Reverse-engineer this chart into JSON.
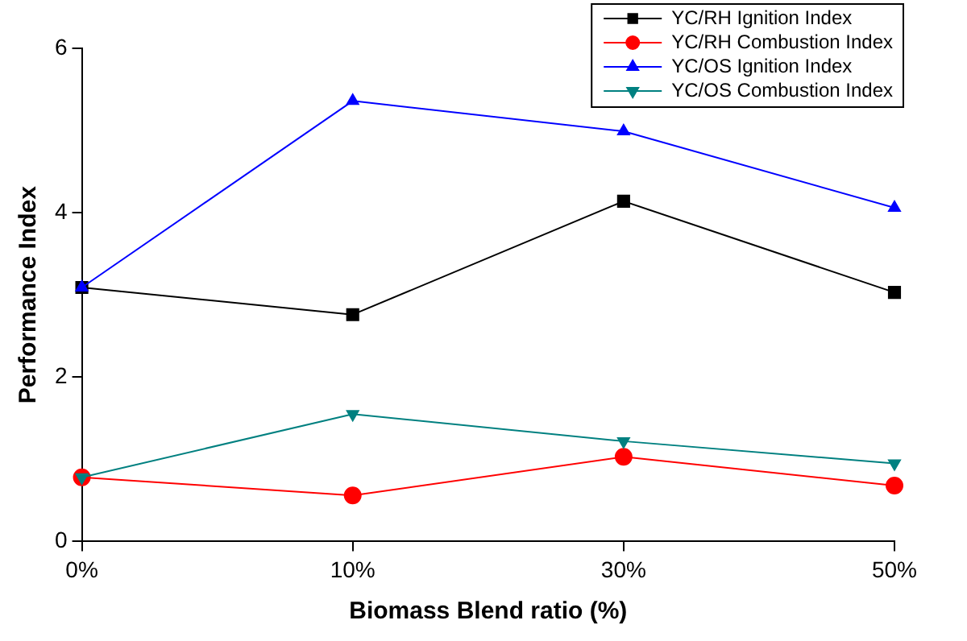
{
  "chart_data": {
    "type": "line",
    "xlabel": "Biomass Blend ratio (%)",
    "ylabel": "Performance Index",
    "categories": [
      "0%",
      "10%",
      "30%",
      "50%"
    ],
    "ylim": [
      0,
      6
    ],
    "yticks": [
      0,
      2,
      4,
      6
    ],
    "grid": false,
    "legend": "top right",
    "line_style": "solid",
    "series": [
      {
        "name": "YC/RH Ignition Index",
        "color": "#000000",
        "marker": "square",
        "values": [
          3.09,
          2.76,
          4.14,
          3.03
        ]
      },
      {
        "name": "YC/RH Combustion Index",
        "color": "#ff0000",
        "marker": "circle",
        "values": [
          0.78,
          0.56,
          1.03,
          0.68
        ]
      },
      {
        "name": "YC/OS Ignition Index",
        "color": "#0000ff",
        "marker": "triangle",
        "values": [
          3.09,
          5.36,
          4.99,
          4.06
        ]
      },
      {
        "name": "YC/OS Combustion Index",
        "color": "#008080",
        "marker": "triangle-down",
        "values": [
          0.78,
          1.55,
          1.22,
          0.95
        ]
      }
    ]
  }
}
